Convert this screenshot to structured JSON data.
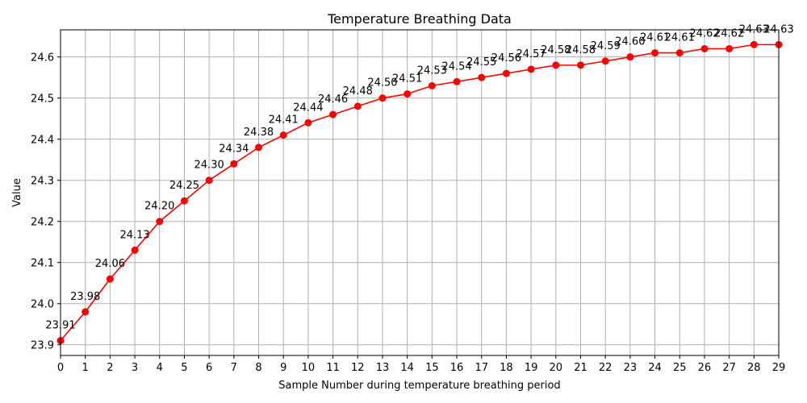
{
  "chart_data": {
    "type": "line",
    "title": "Temperature Breathing Data",
    "xlabel": "Sample Number during temperature breathing period",
    "ylabel": "Value",
    "x": [
      0,
      1,
      2,
      3,
      4,
      5,
      6,
      7,
      8,
      9,
      10,
      11,
      12,
      13,
      14,
      15,
      16,
      17,
      18,
      19,
      20,
      21,
      22,
      23,
      24,
      25,
      26,
      27,
      28,
      29
    ],
    "x_tick_labels": [
      "0",
      "1",
      "2",
      "3",
      "4",
      "5",
      "6",
      "7",
      "8",
      "9",
      "10",
      "11",
      "12",
      "13",
      "14",
      "15",
      "16",
      "17",
      "18",
      "19",
      "20",
      "21",
      "22",
      "23",
      "24",
      "25",
      "26",
      "27",
      "28",
      "29"
    ],
    "values": [
      23.91,
      23.98,
      24.06,
      24.13,
      24.2,
      24.25,
      24.3,
      24.34,
      24.38,
      24.41,
      24.44,
      24.46,
      24.48,
      24.5,
      24.51,
      24.53,
      24.54,
      24.55,
      24.56,
      24.57,
      24.58,
      24.58,
      24.59,
      24.6,
      24.61,
      24.61,
      24.62,
      24.62,
      24.63,
      24.63
    ],
    "data_labels": [
      "23.91",
      "23.98",
      "24.06",
      "24.13",
      "24.20",
      "24.25",
      "24.30",
      "24.34",
      "24.38",
      "24.41",
      "24.44",
      "24.46",
      "24.48",
      "24.50",
      "24.51",
      "24.53",
      "24.54",
      "24.55",
      "24.56",
      "24.57",
      "24.58",
      "24.58",
      "24.59",
      "24.60",
      "24.61",
      "24.61",
      "24.62",
      "24.62",
      "24.63",
      "24.63"
    ],
    "y_ticks": [
      23.9,
      24.0,
      24.1,
      24.2,
      24.3,
      24.4,
      24.5,
      24.6
    ],
    "y_tick_labels": [
      "23.9",
      "24.0",
      "24.1",
      "24.2",
      "24.3",
      "24.4",
      "24.5",
      "24.6"
    ],
    "xlim": [
      0,
      29
    ],
    "ylim": [
      23.874,
      24.666
    ],
    "grid": true,
    "line_color": "#ff0000",
    "marker": "circle"
  }
}
